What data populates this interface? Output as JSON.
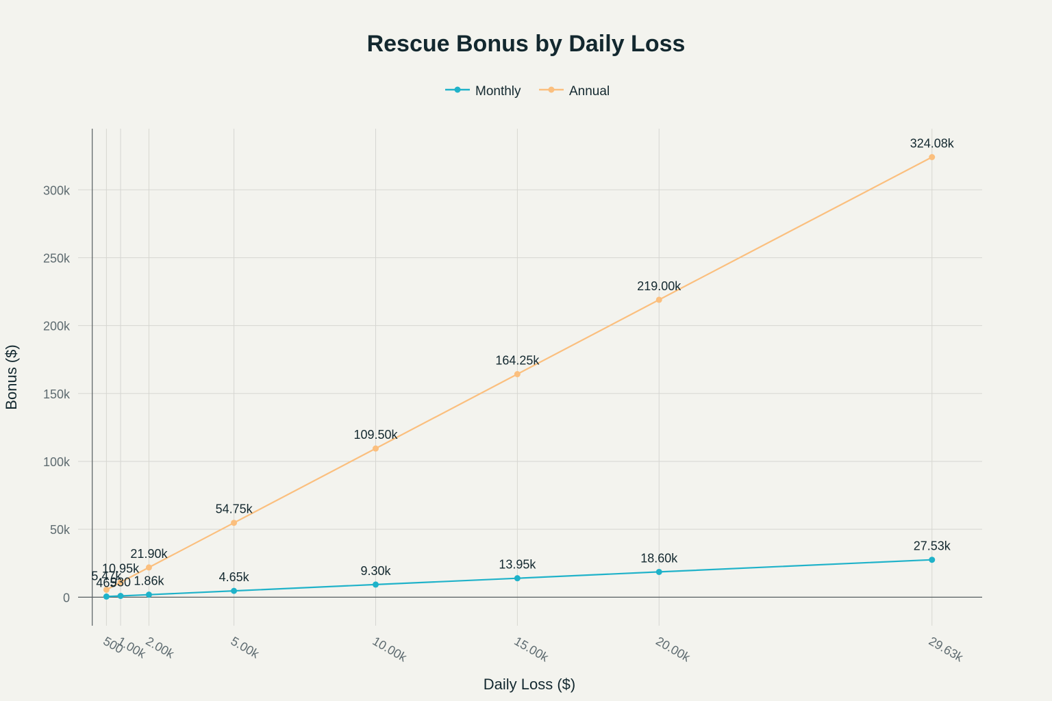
{
  "chart_data": {
    "type": "line",
    "title": "Rescue Bonus by Daily Loss",
    "xlabel": "Daily Loss ($)",
    "ylabel": "Bonus ($)",
    "x": [
      500,
      1000,
      2000,
      5000,
      10000,
      15000,
      20000,
      29630
    ],
    "x_tick_labels": [
      "500",
      "1.00k",
      "2.00k",
      "5.00k",
      "10.00k",
      "15.00k",
      "20.00k",
      "29.63k"
    ],
    "y_ticks": [
      0,
      50000,
      100000,
      150000,
      200000,
      250000,
      300000
    ],
    "y_tick_labels": [
      "0",
      "50k",
      "100k",
      "150k",
      "200k",
      "250k",
      "300k"
    ],
    "xlim": [
      -500,
      31400
    ],
    "ylim": [
      -21000,
      345000
    ],
    "grid": true,
    "legend_position": "top-center",
    "series": [
      {
        "name": "Monthly",
        "color": "#1fb2c9",
        "values": [
          465,
          930,
          1860,
          4650,
          9300,
          13950,
          18600,
          27530
        ],
        "labels": [
          "465",
          "930",
          "1.86k",
          "4.65k",
          "9.30k",
          "13.95k",
          "18.60k",
          "27.53k"
        ]
      },
      {
        "name": "Annual",
        "color": "#fbbf7e",
        "values": [
          5475,
          10950,
          21900,
          54750,
          109500,
          164250,
          219000,
          324080
        ],
        "labels": [
          "5.47k",
          "10.95k",
          "21.90k",
          "54.75k",
          "109.50k",
          "164.25k",
          "219.00k",
          "324.08k"
        ]
      }
    ]
  }
}
